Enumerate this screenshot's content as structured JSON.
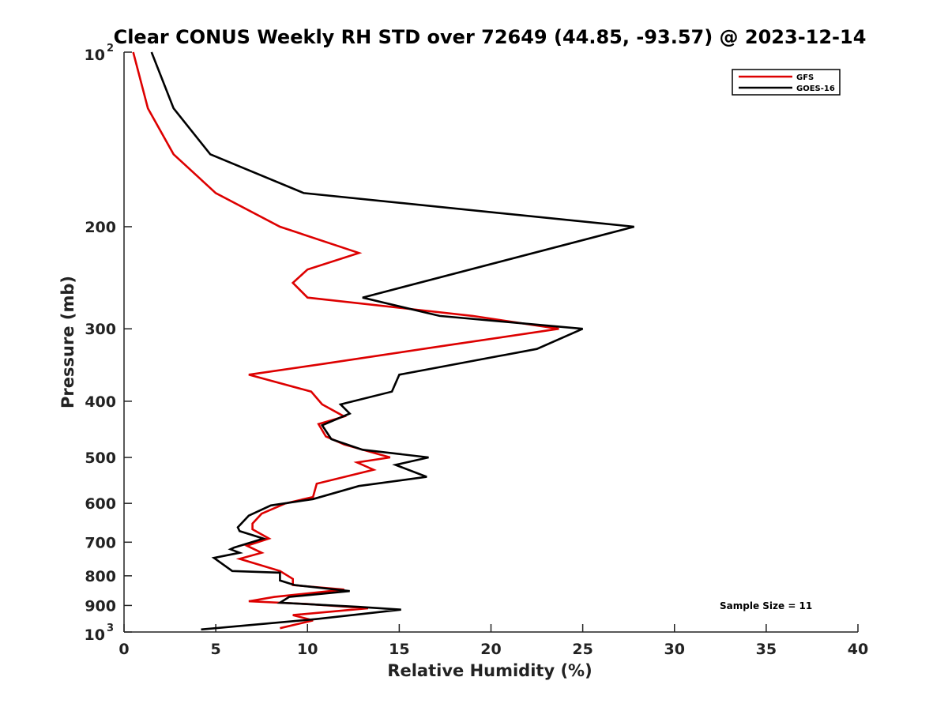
{
  "chart_data": {
    "type": "line",
    "title": "Clear CONUS Weekly RH STD over 72649 (44.85, -93.57) @ 2023-12-14",
    "xlabel": "Relative Humidity (%)",
    "ylabel": "Pressure (mb)",
    "xlim": [
      0,
      40
    ],
    "ylim": [
      100,
      1000
    ],
    "y_scale": "log",
    "y_reversed": true,
    "xticks": [
      0,
      5,
      10,
      15,
      20,
      25,
      30,
      35,
      40
    ],
    "xtick_labels": [
      "0",
      "5",
      "10",
      "15",
      "20",
      "25",
      "30",
      "35",
      "40"
    ],
    "yticks": [
      200,
      300,
      400,
      500,
      600,
      700,
      800,
      900
    ],
    "ytick_labels": [
      "200",
      "300",
      "400",
      "500",
      "600",
      "700",
      "800",
      "900"
    ],
    "y_end_labels": [
      {
        "base": "10",
        "exp": "2",
        "value": 100
      },
      {
        "base": "10",
        "exp": "3",
        "value": 1000
      }
    ],
    "legend_position": "top-right",
    "annotation": "Sample Size = 11",
    "grid": false,
    "series": [
      {
        "name": "GFS",
        "color": "#dd0000",
        "points": [
          [
            0.5,
            100
          ],
          [
            1.3,
            125
          ],
          [
            2.7,
            150
          ],
          [
            5.0,
            175
          ],
          [
            8.5,
            200
          ],
          [
            12.8,
            222
          ],
          [
            10.0,
            237
          ],
          [
            9.2,
            250
          ],
          [
            10.0,
            265
          ],
          [
            19.0,
            285
          ],
          [
            23.7,
            300
          ],
          [
            17.7,
            320
          ],
          [
            10.8,
            345
          ],
          [
            6.8,
            360
          ],
          [
            10.2,
            385
          ],
          [
            10.8,
            405
          ],
          [
            12.0,
            425
          ],
          [
            10.6,
            438
          ],
          [
            11.0,
            460
          ],
          [
            12.0,
            475
          ],
          [
            14.5,
            500
          ],
          [
            12.7,
            510
          ],
          [
            13.6,
            525
          ],
          [
            10.5,
            555
          ],
          [
            10.3,
            585
          ],
          [
            8.8,
            600
          ],
          [
            7.5,
            625
          ],
          [
            7.0,
            650
          ],
          [
            7.0,
            665
          ],
          [
            7.9,
            690
          ],
          [
            6.7,
            710
          ],
          [
            7.5,
            730
          ],
          [
            6.3,
            748
          ],
          [
            8.5,
            785
          ],
          [
            9.2,
            810
          ],
          [
            9.2,
            830
          ],
          [
            12.0,
            845
          ],
          [
            8.2,
            870
          ],
          [
            6.8,
            885
          ],
          [
            10.0,
            895
          ],
          [
            13.3,
            910
          ],
          [
            9.2,
            935
          ],
          [
            10.3,
            955
          ],
          [
            8.5,
            985
          ]
        ]
      },
      {
        "name": "GOES-16",
        "color": "#000000",
        "points": [
          [
            1.5,
            100
          ],
          [
            2.7,
            125
          ],
          [
            4.7,
            150
          ],
          [
            9.8,
            175
          ],
          [
            27.8,
            200
          ],
          [
            13.0,
            265
          ],
          [
            17.2,
            285
          ],
          [
            25.0,
            300
          ],
          [
            22.5,
            325
          ],
          [
            15.0,
            360
          ],
          [
            14.6,
            385
          ],
          [
            11.8,
            405
          ],
          [
            12.3,
            420
          ],
          [
            10.8,
            440
          ],
          [
            11.3,
            465
          ],
          [
            13.0,
            485
          ],
          [
            16.6,
            500
          ],
          [
            14.8,
            515
          ],
          [
            16.5,
            540
          ],
          [
            12.8,
            560
          ],
          [
            10.3,
            590
          ],
          [
            8.0,
            605
          ],
          [
            6.8,
            630
          ],
          [
            6.2,
            660
          ],
          [
            6.3,
            670
          ],
          [
            7.6,
            690
          ],
          [
            6.0,
            715
          ],
          [
            5.8,
            720
          ],
          [
            6.3,
            730
          ],
          [
            4.9,
            745
          ],
          [
            5.9,
            785
          ],
          [
            8.5,
            790
          ],
          [
            8.5,
            815
          ],
          [
            9.3,
            830
          ],
          [
            12.3,
            850
          ],
          [
            9.0,
            870
          ],
          [
            8.5,
            890
          ],
          [
            12.8,
            905
          ],
          [
            15.1,
            915
          ],
          [
            10.5,
            950
          ],
          [
            4.2,
            990
          ]
        ]
      }
    ]
  }
}
